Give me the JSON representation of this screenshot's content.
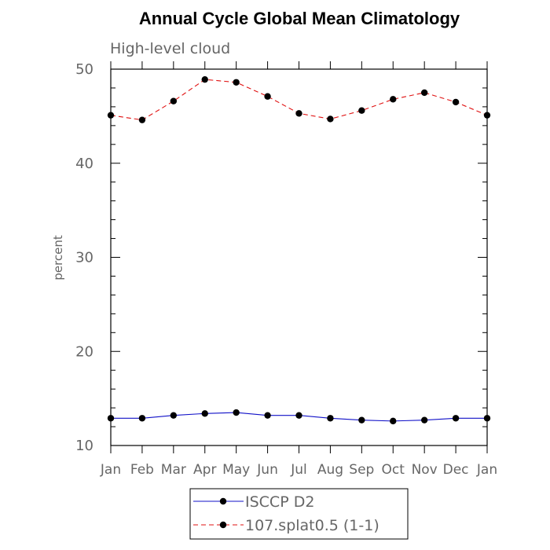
{
  "chart_data": {
    "type": "line",
    "title": "Annual Cycle Global Mean Climatology",
    "subtitle": "High-level cloud",
    "xlabel": "",
    "ylabel": "percent",
    "categories": [
      "Jan",
      "Feb",
      "Mar",
      "Apr",
      "May",
      "Jun",
      "Jul",
      "Aug",
      "Sep",
      "Oct",
      "Nov",
      "Dec",
      "Jan"
    ],
    "ylim": [
      10,
      50
    ],
    "yticks": [
      10,
      20,
      30,
      40,
      50
    ],
    "series": [
      {
        "name": "ISCCP D2",
        "color": "#1010c8",
        "dash": "solid",
        "marker": "filled-circle",
        "values": [
          12.9,
          12.9,
          13.2,
          13.4,
          13.5,
          13.2,
          13.2,
          12.9,
          12.7,
          12.6,
          12.7,
          12.9,
          12.9
        ]
      },
      {
        "name": "107.splat0.5 (1-1)",
        "color": "#e01010",
        "dash": "dashed",
        "marker": "filled-circle",
        "values": [
          45.1,
          44.6,
          46.6,
          48.9,
          48.6,
          47.1,
          45.3,
          44.7,
          45.6,
          46.8,
          47.5,
          46.5,
          45.1
        ]
      }
    ],
    "legend_position": "bottom-center",
    "grid": false
  }
}
